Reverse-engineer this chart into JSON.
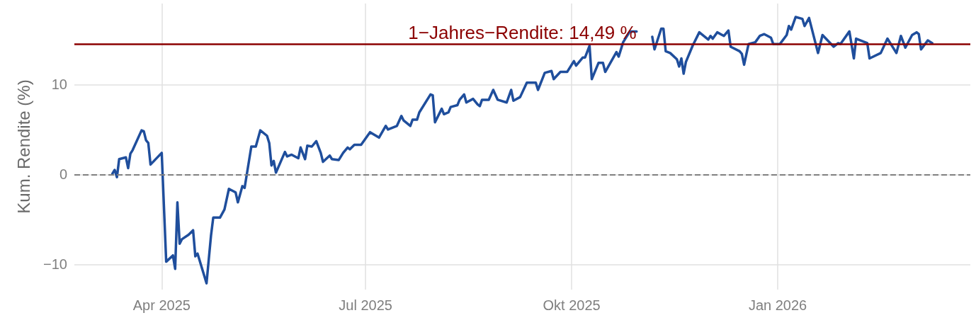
{
  "chart_data": {
    "type": "line",
    "ylabel": "Kum. Rendite (%)",
    "x": [
      "2025-03-10",
      "2025-03-11",
      "2025-03-12",
      "2025-03-13",
      "2025-03-16",
      "2025-03-17",
      "2025-03-18",
      "2025-03-19",
      "2025-03-23",
      "2025-03-24",
      "2025-03-25",
      "2025-03-26",
      "2025-03-27",
      "2025-04-01",
      "2025-04-03",
      "2025-04-06",
      "2025-04-07",
      "2025-04-08",
      "2025-04-09",
      "2025-04-10",
      "2025-04-13",
      "2025-04-15",
      "2025-04-16",
      "2025-04-17",
      "2025-04-21",
      "2025-04-23",
      "2025-04-24",
      "2025-04-27",
      "2025-04-29",
      "2025-05-01",
      "2025-05-04",
      "2025-05-05",
      "2025-05-07",
      "2025-05-08",
      "2025-05-11",
      "2025-05-13",
      "2025-05-15",
      "2025-05-18",
      "2025-05-19",
      "2025-05-20",
      "2025-05-21",
      "2025-05-22",
      "2025-05-26",
      "2025-05-27",
      "2025-05-29",
      "2025-06-01",
      "2025-06-02",
      "2025-06-04",
      "2025-06-05",
      "2025-06-07",
      "2025-06-09",
      "2025-06-11",
      "2025-06-12",
      "2025-06-15",
      "2025-06-16",
      "2025-06-19",
      "2025-06-21",
      "2025-06-23",
      "2025-06-24",
      "2025-06-26",
      "2025-06-29",
      "2025-07-03",
      "2025-07-07",
      "2025-07-10",
      "2025-07-11",
      "2025-07-15",
      "2025-07-17",
      "2025-07-18",
      "2025-07-21",
      "2025-07-22",
      "2025-07-24",
      "2025-07-25",
      "2025-07-30",
      "2025-07-31",
      "2025-08-01",
      "2025-08-04",
      "2025-08-05",
      "2025-08-07",
      "2025-08-08",
      "2025-08-11",
      "2025-08-12",
      "2025-08-14",
      "2025-08-15",
      "2025-08-18",
      "2025-08-20",
      "2025-08-21",
      "2025-08-22",
      "2025-08-25",
      "2025-08-27",
      "2025-08-29",
      "2025-09-02",
      "2025-09-04",
      "2025-09-05",
      "2025-09-08",
      "2025-09-11",
      "2025-09-15",
      "2025-09-16",
      "2025-09-19",
      "2025-09-22",
      "2025-09-23",
      "2025-09-26",
      "2025-09-29",
      "2025-10-02",
      "2025-10-03",
      "2025-10-06",
      "2025-10-07",
      "2025-10-09",
      "2025-10-10",
      "2025-10-13",
      "2025-10-15",
      "2025-10-16",
      "2025-10-21",
      "2025-10-22",
      "2025-10-24",
      "2025-10-27",
      "2025-10-30",
      "2025-11-03",
      "2025-11-06",
      "2025-11-07",
      "2025-11-10",
      "2025-11-11",
      "2025-11-12",
      "2025-11-14",
      "2025-11-17",
      "2025-11-18",
      "2025-11-19",
      "2025-11-20",
      "2025-11-21",
      "2025-11-24",
      "2025-11-27",
      "2025-12-01",
      "2025-12-02",
      "2025-12-03",
      "2025-12-05",
      "2025-12-08",
      "2025-12-10",
      "2025-12-11",
      "2025-12-15",
      "2025-12-16",
      "2025-12-17",
      "2025-12-19",
      "2025-12-22",
      "2025-12-24",
      "2025-12-26",
      "2025-12-29",
      "2025-12-30",
      "2026-01-02",
      "2026-01-05",
      "2026-01-06",
      "2026-01-07",
      "2026-01-09",
      "2026-01-12",
      "2026-01-13",
      "2026-01-15",
      "2026-01-19",
      "2026-01-21",
      "2026-01-26",
      "2026-01-28",
      "2026-01-29",
      "2026-02-02",
      "2026-02-04",
      "2026-02-05",
      "2026-02-09",
      "2026-02-10",
      "2026-02-11",
      "2026-02-16",
      "2026-02-19",
      "2026-02-23",
      "2026-02-25",
      "2026-02-27",
      "2026-03-02",
      "2026-03-04",
      "2026-03-05",
      "2026-03-06",
      "2026-03-09",
      "2026-03-11"
    ],
    "series": [
      {
        "color": "#1f4e9c",
        "values": [
          0.1,
          0.5,
          -0.3,
          1.7,
          1.9,
          0.7,
          2.3,
          2.7,
          4.9,
          4.8,
          3.8,
          3.5,
          1.1,
          2.4,
          -9.7,
          -9.0,
          -10.5,
          -3.1,
          -7.7,
          -7.2,
          -6.7,
          -6.2,
          -9.1,
          -8.8,
          -12.1,
          -6.8,
          -4.8,
          -4.8,
          -3.9,
          -1.6,
          -2.0,
          -3.1,
          -1.3,
          -1.5,
          3.1,
          3.1,
          4.9,
          4.3,
          3.5,
          1.0,
          1.5,
          0.2,
          2.5,
          2.0,
          2.2,
          1.8,
          3.0,
          1.7,
          3.2,
          3.1,
          3.7,
          2.4,
          1.4,
          2.1,
          1.7,
          1.6,
          2.4,
          3.0,
          2.8,
          3.3,
          3.3,
          4.7,
          4.1,
          5.4,
          5.0,
          5.4,
          6.5,
          6.0,
          5.4,
          6.1,
          6.1,
          6.9,
          8.9,
          8.8,
          5.8,
          7.3,
          6.7,
          6.9,
          7.5,
          7.7,
          8.3,
          8.9,
          8.0,
          8.4,
          7.8,
          7.6,
          8.3,
          8.3,
          9.4,
          8.3,
          8.0,
          9.4,
          8.2,
          8.6,
          10.2,
          10.2,
          9.4,
          11.3,
          11.5,
          10.6,
          11.4,
          11.4,
          12.6,
          12.1,
          13.0,
          13.0,
          14.3,
          10.6,
          12.4,
          12.4,
          11.4,
          13.6,
          13.1,
          14.7,
          15.9,
          15.9,
          null,
          15.3,
          13.9,
          16.2,
          16.2,
          13.7,
          13.5,
          12.8,
          12.0,
          12.9,
          11.2,
          12.5,
          14.3,
          15.8,
          15.0,
          15.4,
          15.1,
          15.8,
          15.4,
          16.0,
          14.2,
          13.7,
          13.4,
          12.2,
          14.5,
          14.7,
          15.4,
          15.6,
          15.2,
          14.5,
          14.5,
          15.5,
          16.5,
          16.1,
          17.5,
          17.3,
          16.5,
          17.4,
          13.5,
          15.5,
          14.2,
          14.6,
          14.5,
          15.9,
          12.9,
          15.1,
          14.7,
          14.6,
          12.9,
          13.5,
          15.1,
          13.5,
          15.4,
          14.1,
          15.5,
          15.8,
          15.6,
          13.9,
          14.9,
          14.6
        ]
      }
    ],
    "xlim": [
      "2025-02-21",
      "2026-03-28"
    ],
    "xticks": [
      {
        "value": "2025-04-01",
        "label": "Apr 2025"
      },
      {
        "value": "2025-07-01",
        "label": "Jul 2025"
      },
      {
        "value": "2025-10-01",
        "label": "Okt 2025"
      },
      {
        "value": "2026-01-01",
        "label": "Jan 2026"
      }
    ],
    "ylim": [
      -12.8,
      19
    ],
    "yticks": [
      {
        "value": -10,
        "label": "−10"
      },
      0,
      10
    ],
    "ref_lines": [
      {
        "axis": "y",
        "value": 0,
        "color": "#808080",
        "line_style": "dashed"
      },
      {
        "axis": "y",
        "value": 14.49,
        "label": "1−Jahres−Rendite: 14,49 %",
        "color": "#8b0000",
        "line_style": "solid"
      }
    ],
    "grid": true,
    "marker": "none",
    "line_style": "solid"
  }
}
